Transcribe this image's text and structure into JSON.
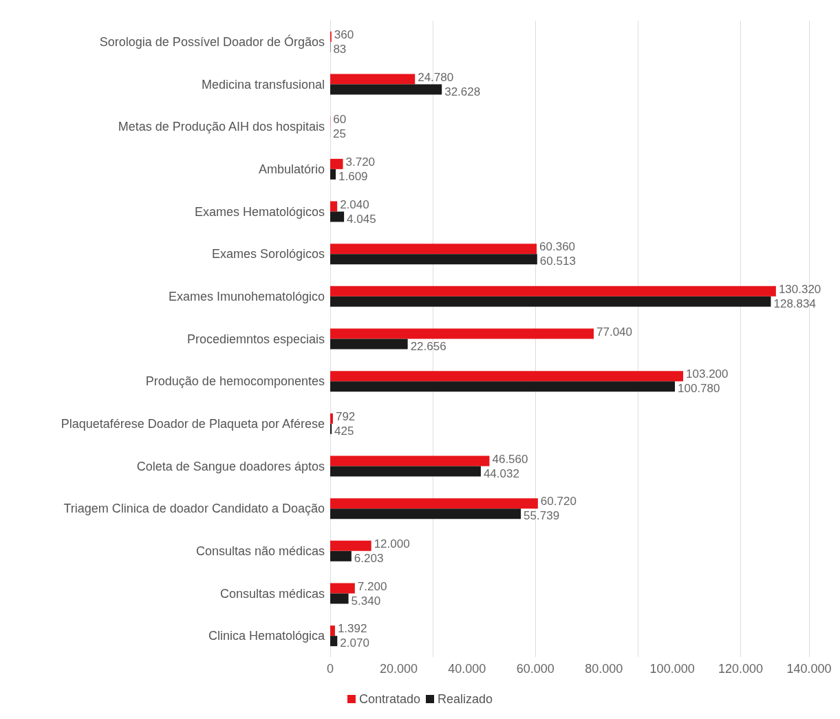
{
  "chart_data": {
    "type": "bar",
    "orientation": "horizontal",
    "categories": [
      "Sorologia de Possível Doador de Órgãos",
      "Medicina transfusional",
      "Metas de Produção AIH dos hospitais",
      "Ambulatório",
      "Exames Hematológicos",
      "Exames Sorológicos",
      "Exames Imunohematológico",
      "Procediemntos especiais",
      "Produção de hemocomponentes",
      "Plaquetaférese Doador de Plaqueta por Aférese",
      "Coleta de Sangue doadores áptos",
      "Triagem Clinica de doador Candidato a Doação",
      "Consultas não médicas",
      "Consultas médicas",
      "Clinica Hematológica"
    ],
    "series": [
      {
        "name": "Contratado",
        "color": "#e8141b",
        "values": [
          360,
          24780,
          60,
          3720,
          2040,
          60360,
          130320,
          77040,
          103200,
          792,
          46560,
          60720,
          12000,
          7200,
          1392
        ],
        "value_labels": [
          "360",
          "24.780",
          "60",
          "3.720",
          "2.040",
          "60.360",
          "130.320",
          "77.040",
          "103.200",
          "792",
          "46.560",
          "60.720",
          "12.000",
          "7.200",
          "1.392"
        ]
      },
      {
        "name": "Realizado",
        "color": "#1a1a1a",
        "values": [
          83,
          32628,
          25,
          1609,
          4045,
          60513,
          128834,
          22656,
          100780,
          425,
          44032,
          55739,
          6203,
          5340,
          2070
        ],
        "value_labels": [
          "83",
          "32.628",
          "25",
          "1.609",
          "4.045",
          "60.513",
          "128.834",
          "22.656",
          "100.780",
          "425",
          "44.032",
          "55.739",
          "6.203",
          "5.340",
          "2.070"
        ]
      }
    ],
    "xlim": [
      0,
      140000
    ],
    "xticks": [
      0,
      {
        "value": 20000,
        "label": "20.000"
      },
      {
        "value": 40000,
        "label": "40.000"
      },
      {
        "value": 60000,
        "label": "60.000"
      },
      {
        "value": 80000,
        "label": "80.000"
      },
      {
        "value": 100000,
        "label": "100.000"
      },
      {
        "value": 120000,
        "label": "120.000"
      },
      {
        "value": 140000,
        "label": "140.000"
      }
    ],
    "grid": "x",
    "legend": "bottom"
  }
}
